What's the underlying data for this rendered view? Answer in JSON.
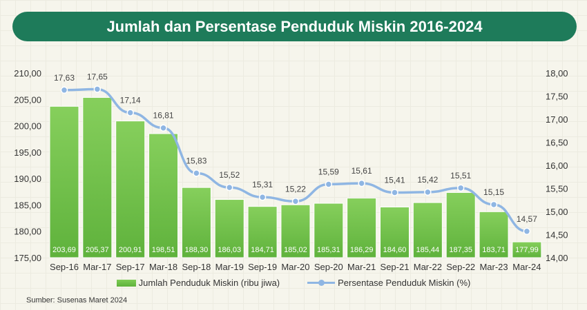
{
  "chart_data": {
    "type": "bar+line",
    "title": "Jumlah dan Persentase Penduduk Miskin 2016-2024",
    "categories": [
      "Sep-16",
      "Mar-17",
      "Sep-17",
      "Mar-18",
      "Sep-18",
      "Mar-19",
      "Sep-19",
      "Mar-20",
      "Sep-20",
      "Mar-21",
      "Sep-21",
      "Mar-22",
      "Sep-22",
      "Mar-23",
      "Mar-24"
    ],
    "series": [
      {
        "name": "Jumlah Penduduk Miskin (ribu jiwa)",
        "type": "bar",
        "axis": "left",
        "color": "#6cbf45",
        "values": [
          203.69,
          205.37,
          200.91,
          198.51,
          188.3,
          186.03,
          184.71,
          185.02,
          185.31,
          186.29,
          184.6,
          185.44,
          187.35,
          183.71,
          177.99
        ],
        "labels": [
          "203,69",
          "205,37",
          "200,91",
          "198,51",
          "188,30",
          "186,03",
          "184,71",
          "185,02",
          "185,31",
          "186,29",
          "184,60",
          "185,44",
          "187,35",
          "183,71",
          "177,99"
        ]
      },
      {
        "name": "Persentase Penduduk Miskin (%)",
        "type": "line",
        "axis": "right",
        "color": "#8fb6e3",
        "values": [
          17.63,
          17.65,
          17.14,
          16.81,
          15.83,
          15.52,
          15.31,
          15.22,
          15.59,
          15.61,
          15.41,
          15.42,
          15.51,
          15.15,
          14.57
        ],
        "labels": [
          "17,63",
          "17,65",
          "17,14",
          "16,81",
          "15,83",
          "15,52",
          "15,31",
          "15,22",
          "15,59",
          "15,61",
          "15,41",
          "15,42",
          "15,51",
          "15,15",
          "14,57"
        ]
      }
    ],
    "ylim_left": [
      175,
      210
    ],
    "yticks_left": [
      "175,00",
      "180,00",
      "185,00",
      "190,00",
      "195,00",
      "200,00",
      "205,00",
      "210,00"
    ],
    "ylim_right": [
      14,
      18
    ],
    "yticks_right": [
      "14,00",
      "14,50",
      "15,00",
      "15,50",
      "16,00",
      "16,50",
      "17,00",
      "17,50",
      "18,00"
    ],
    "legend": "bottom",
    "source": "Sumber: Susenas Maret 2024"
  }
}
